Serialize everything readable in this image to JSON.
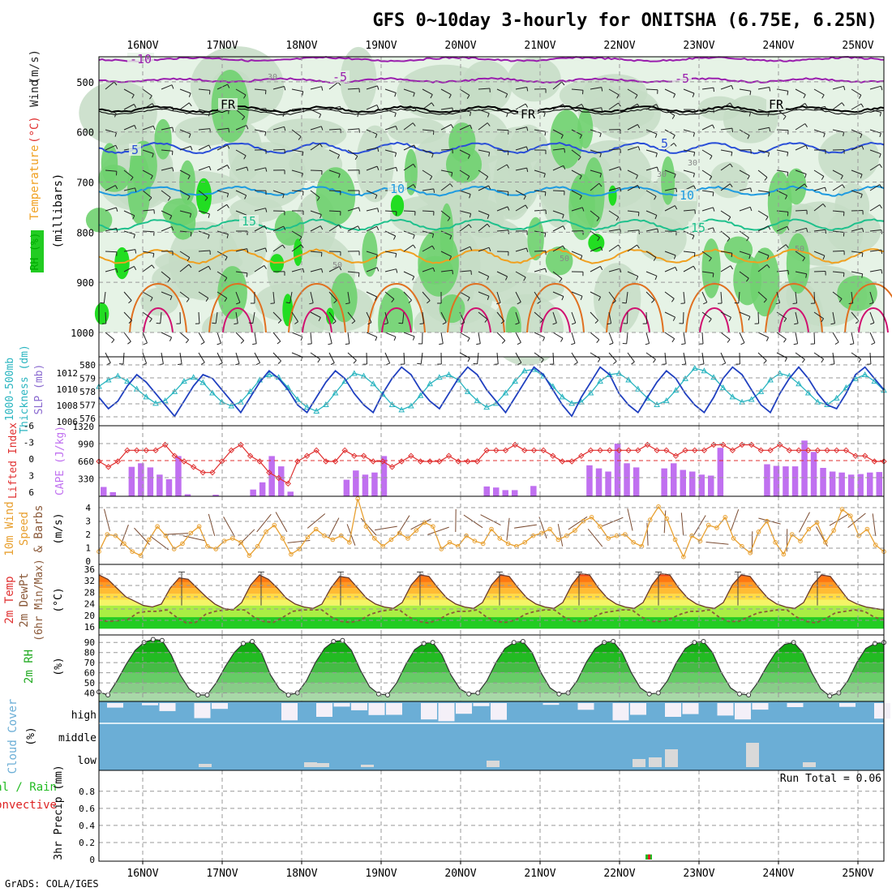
{
  "title": "GFS 0~10day 3-hourly for ONITSHA (6.75E, 6.25N)",
  "credit": "GrADS: COLA/IGES",
  "dates": [
    "16NOV",
    "17NOV",
    "18NOV",
    "19NOV",
    "20NOV",
    "21NOV",
    "22NOV",
    "23NOV",
    "24NOV",
    "25NOV"
  ],
  "colors": {
    "rh_light": "#e6f3e6",
    "rh_mid": "#c6dcc6",
    "rh_green": "#6fd26f",
    "rh_bright": "#22dd22",
    "t_purple": "#9a1fae",
    "t_blue": "#2a4fd8",
    "t_sky": "#1e9be0",
    "t_teal": "#1fc08c",
    "t_orange": "#f0a020",
    "t_dark_orange": "#e07020",
    "t_magenta": "#d01070",
    "thickness": "#2ab5c0",
    "slp": "#2040c0",
    "lifted_index": "#e03030",
    "cape": "#c070f0",
    "wind_speed": "#e8a030",
    "barbs": "#7a4a30",
    "dewpt": "#8b5a3a",
    "cloud": "#6baed6",
    "cloud_clear": "#f4f0f8",
    "cloud_low_grey": "#d9d9d9",
    "precip_total": "#22bb22",
    "precip_conv": "#dd2222"
  },
  "panels": {
    "upper_air": {
      "legend": [
        {
          "text": "RH (%)",
          "color": "#00aa00"
        },
        {
          "text": "Temperature",
          "color": "#e8a030"
        },
        {
          "text": "(°C)",
          "color": "#e03030"
        },
        {
          "text": "Wind",
          "color": "#222222"
        },
        {
          "text": "(m/s)",
          "color": "#222222"
        }
      ],
      "axis_label": "(millibars)",
      "pressure_ticks": [
        "500",
        "600",
        "700",
        "800",
        "900",
        "1000"
      ],
      "isotherm_labels": [
        "-10",
        "-5",
        "-5",
        "FR",
        "FR",
        "FR",
        "5",
        "5",
        "10",
        "10",
        "15",
        "15"
      ],
      "rh_contour_labels": [
        "30",
        "30",
        "30",
        "50",
        "50",
        "50"
      ]
    },
    "thickness_slp": {
      "label_thickness": "1000-500mb",
      "label_thickness2": "Thickness (dm)",
      "label_slp": "SLP (mb)",
      "left_ticks": [
        "580",
        "579",
        "578",
        "577",
        "576"
      ],
      "right_ticks": [
        "1012",
        "1010",
        "1008",
        "1006"
      ]
    },
    "li_cape": {
      "label_li": "Lifted Index",
      "label_cape": "CAPE (J/kg)",
      "li_ticks": [
        "-6",
        "-3",
        "0",
        "3",
        "6"
      ],
      "cape_ticks": [
        "1320",
        "990",
        "660",
        "330"
      ]
    },
    "wind10m": {
      "label1": "10m Wind",
      "label2": "Speed",
      "label3": "& Barbs",
      "unit": "(m/s)",
      "ticks": [
        "4",
        "3",
        "2",
        "1",
        "0"
      ]
    },
    "temp2m": {
      "label1": "2m Temp",
      "label2": "2m DewPt",
      "label3": "(6hr Min/Max)",
      "unit": "(°C)",
      "ticks": [
        "36",
        "32",
        "28",
        "24",
        "20",
        "16"
      ]
    },
    "rh2m": {
      "label": "2m RH",
      "unit": "(%)",
      "ticks": [
        "90",
        "80",
        "70",
        "60",
        "50",
        "40"
      ]
    },
    "cloud": {
      "label": "Cloud Cover",
      "unit": "(%)",
      "levels": [
        "high",
        "middle",
        "low"
      ]
    },
    "precip": {
      "label1": "Total / Rain",
      "label2": "Convective",
      "label3": "3hr Precip (mm)",
      "run_total": "Run Total = 0.06",
      "ticks": [
        "0.8",
        "0.6",
        "0.4",
        "0.2",
        "0"
      ]
    }
  },
  "chart_data": [
    {
      "type": "heatmap",
      "title": "GFS 0~10day 3-hourly for ONITSHA (6.75E, 6.25N)",
      "ylabel": "(millibars)",
      "ylim": [
        450,
        1000
      ],
      "x": [
        "16NOV",
        "17NOV",
        "18NOV",
        "19NOV",
        "20NOV",
        "21NOV",
        "22NOV",
        "23NOV",
        "24NOV",
        "25NOV"
      ],
      "isotherms_c": [
        -10,
        -5,
        0,
        5,
        10,
        15
      ],
      "isotherm_pressure_mb": {
        "-10": 455,
        "-5": 497,
        "0": 555,
        "5": 632,
        "10": 718,
        "15": 785
      }
    },
    {
      "type": "line",
      "series": [
        {
          "name": "1000-500mb Thickness (dm)",
          "values": [
            578.4,
            578.9,
            579.2,
            578.8,
            578.2,
            577.6,
            577.1,
            577.3,
            578.0,
            578.8,
            579.1,
            578.7,
            577.9,
            577.2,
            576.9,
            577.2,
            578.0,
            578.9,
            579.3,
            579.1,
            578.3,
            577.4,
            576.8,
            576.5,
            577.0,
            577.9,
            578.8,
            579.4,
            579.2,
            578.6,
            577.8,
            577.0,
            576.6,
            576.9,
            577.7,
            578.6,
            579.1,
            579.3,
            578.9,
            578.0,
            577.3,
            576.8,
            577.1,
            577.9,
            578.8,
            579.6,
            579.7,
            579.2,
            578.4,
            577.6,
            577.1,
            577.2,
            577.9,
            578.8,
            579.3,
            579.4,
            578.9,
            578.2,
            577.5,
            577.0,
            577.3,
            578.1,
            579.0,
            579.8,
            579.6,
            579.1,
            578.3,
            577.6,
            577.2,
            577.4,
            578.0,
            578.9,
            579.4,
            579.2,
            578.6,
            577.9,
            577.2,
            577.0,
            577.5,
            578.3,
            579.0,
            579.3,
            578.8,
            578.1
          ]
        },
        {
          "name": "SLP (mb)",
          "values": [
            1009.0,
            1007.5,
            1008.5,
            1010.5,
            1012.0,
            1011.0,
            1009.5,
            1008.0,
            1006.5,
            1008.5,
            1010.5,
            1012.0,
            1011.5,
            1010.0,
            1008.5,
            1007.0,
            1009.0,
            1011.0,
            1012.5,
            1011.5,
            1010.0,
            1008.0,
            1007.0,
            1009.0,
            1011.0,
            1012.5,
            1011.5,
            1009.5,
            1008.0,
            1007.0,
            1009.5,
            1011.5,
            1013.0,
            1012.0,
            1010.0,
            1008.5,
            1007.5,
            1009.5,
            1011.5,
            1013.0,
            1012.0,
            1010.0,
            1008.5,
            1007.0,
            1009.0,
            1011.0,
            1013.0,
            1012.0,
            1010.0,
            1008.0,
            1006.5,
            1009.0,
            1011.0,
            1013.0,
            1012.0,
            1009.5,
            1008.0,
            1007.0,
            1009.0,
            1011.0,
            1012.5,
            1011.5,
            1009.5,
            1008.0,
            1007.0,
            1009.0,
            1011.5,
            1013.0,
            1012.0,
            1010.0,
            1008.0,
            1007.0,
            1009.5,
            1011.5,
            1013.0,
            1011.5,
            1009.5,
            1008.0,
            1007.5,
            1009.5,
            1012.0,
            1013.0,
            1011.5,
            1010.0
          ]
        }
      ],
      "ylim": [
        1006,
        1013
      ]
    },
    {
      "type": "bar",
      "title": "Lifted Index / CAPE",
      "series": [
        {
          "name": "CAPE (J/kg)",
          "values": [
            180,
            80,
            0,
            570,
            640,
            560,
            420,
            330,
            780,
            40,
            0,
            0,
            30,
            0,
            0,
            0,
            130,
            270,
            780,
            580,
            90,
            0,
            0,
            0,
            0,
            0,
            320,
            500,
            420,
            460,
            780,
            0,
            0,
            0,
            0,
            0,
            0,
            0,
            0,
            0,
            0,
            190,
            170,
            120,
            120,
            0,
            200,
            0,
            0,
            0,
            0,
            0,
            600,
            540,
            480,
            1020,
            640,
            560,
            0,
            0,
            540,
            640,
            510,
            480,
            420,
            400,
            940,
            0,
            0,
            0,
            0,
            620,
            590,
            580,
            580,
            1080,
            860,
            550,
            480,
            460,
            420,
            430,
            460,
            470
          ]
        },
        {
          "name": "Lifted Index",
          "values": [
            0,
            1,
            0,
            -2,
            -2,
            -2,
            -2,
            -3,
            -1,
            0,
            1,
            2,
            2,
            0,
            -2,
            -3,
            -1,
            0,
            2,
            3,
            4,
            0,
            -1,
            -2,
            0,
            0,
            -2,
            -1,
            -1,
            0,
            0,
            1,
            0,
            -1,
            0,
            0,
            0,
            -1,
            0,
            0,
            0,
            -2,
            -2,
            -2,
            -3,
            -2,
            -2,
            -2,
            -1,
            0,
            0,
            -1,
            -2,
            -2,
            -2,
            -2,
            -2,
            -2,
            -3,
            -2,
            -2,
            -1,
            -2,
            -2,
            -2,
            -3,
            -3,
            -2,
            -3,
            -3,
            -2,
            -2,
            -3,
            -2,
            -2,
            -2,
            -2,
            -2,
            -2,
            -2,
            -1,
            -1,
            0,
            0
          ]
        }
      ],
      "ylim": [
        0,
        1320
      ]
    },
    {
      "type": "line",
      "series": [
        {
          "name": "10m Wind Speed (m/s)",
          "values": [
            0.6,
            1.9,
            1.8,
            1.2,
            0.6,
            0.3,
            1.5,
            2.5,
            1.8,
            0.8,
            1.2,
            2.0,
            2.5,
            1.0,
            0.8,
            1.4,
            1.6,
            1.3,
            0.3,
            1.0,
            2.1,
            2.6,
            1.6,
            0.4,
            0.8,
            1.7,
            2.3,
            1.8,
            1.5,
            1.8,
            1.3,
            4.6,
            2.5,
            1.6,
            1.0,
            1.5,
            2.0,
            1.6,
            2.2,
            2.8,
            2.5,
            0.8,
            1.3,
            1.0,
            1.8,
            1.4,
            1.2,
            2.3,
            1.6,
            1.2,
            1.0,
            1.3,
            1.8,
            2.0,
            2.3,
            1.5,
            1.8,
            2.2,
            2.9,
            3.2,
            2.5,
            1.6,
            1.8,
            1.9,
            1.3,
            1.0,
            3.0,
            4.0,
            3.1,
            1.5,
            0.2,
            1.8,
            1.4,
            2.6,
            2.4,
            3.2,
            1.6,
            1.0,
            0.5,
            2.1,
            2.9,
            1.3,
            0.4,
            1.9,
            1.4,
            2.3,
            2.8,
            1.3,
            2.2,
            3.8,
            3.3,
            1.8,
            2.3,
            1.1,
            0.6
          ]
        }
      ],
      "ylim": [
        0,
        4.6
      ]
    },
    {
      "type": "area",
      "series": [
        {
          "name": "2m Temp (°C)",
          "values": [
            34.5,
            33,
            30,
            27,
            25.5,
            24,
            23.5,
            24.5,
            30,
            33.5,
            33,
            30,
            27,
            24.5,
            23,
            22.5,
            25,
            31,
            34.5,
            33,
            30,
            26.5,
            24.5,
            23.5,
            23,
            24.5,
            30,
            34,
            33.5,
            30,
            26.5,
            24.5,
            23.5,
            23,
            25,
            31,
            34.5,
            34,
            30,
            26.5,
            24.5,
            23.5,
            23,
            25,
            31,
            34.5,
            34,
            30,
            26.5,
            24.5,
            23.5,
            23,
            25,
            31,
            35,
            34.5,
            30,
            26.5,
            24.5,
            23.5,
            23,
            25,
            31,
            35,
            34.5,
            30,
            26.5,
            24.5,
            23.5,
            23,
            25,
            31,
            34.5,
            34,
            30,
            26.5,
            24.5,
            23.5,
            23,
            25,
            31,
            34.5,
            34,
            30,
            26,
            24.5,
            23.5,
            23,
            22.5
          ]
        },
        {
          "name": "2m DewPt (°C)",
          "values": [
            19,
            18.5,
            18.8,
            19.2,
            21.5,
            22,
            22,
            22.5,
            20,
            18,
            18.2,
            21,
            22,
            22.5,
            22.5,
            22.5,
            20,
            18.5,
            18.2,
            20,
            22,
            22.5,
            22.5,
            22.5,
            20,
            18.5,
            18.2,
            19,
            21,
            22,
            22.5,
            22.5,
            20,
            18.5,
            18,
            19,
            21,
            22,
            22,
            22.5,
            20,
            18.5,
            18.2,
            19,
            21,
            22,
            22.5,
            22.5,
            20,
            18.5,
            18.5,
            20,
            21.5,
            22,
            22.5,
            22.5,
            20,
            18.5,
            18.5,
            19.5,
            21,
            22,
            22,
            22.5,
            20,
            18.5,
            18.5,
            20,
            21.5,
            22,
            22.5,
            22.5,
            20,
            18.5,
            18,
            19.5,
            21.5,
            22,
            22.5,
            22,
            20,
            19
          ]
        }
      ],
      "ylim": [
        16,
        36
      ]
    },
    {
      "type": "area",
      "series": [
        {
          "name": "2m RH (%)",
          "values": [
            41,
            38,
            52,
            68,
            82,
            90,
            93,
            92,
            78,
            58,
            44,
            38,
            38,
            50,
            66,
            80,
            89,
            91,
            80,
            58,
            44,
            38,
            40,
            52,
            70,
            84,
            91,
            92,
            82,
            62,
            46,
            39,
            38,
            50,
            68,
            83,
            89,
            90,
            78,
            58,
            44,
            39,
            40,
            52,
            70,
            84,
            90,
            91,
            80,
            60,
            45,
            39,
            40,
            52,
            70,
            84,
            90,
            91,
            80,
            60,
            45,
            39,
            40,
            52,
            70,
            84,
            90,
            91,
            80,
            60,
            45,
            39,
            38,
            50,
            66,
            80,
            88,
            90,
            80,
            60,
            44,
            37,
            40,
            52,
            70,
            84,
            89,
            90
          ]
        }
      ],
      "ylim": [
        35,
        95
      ]
    },
    {
      "type": "bar",
      "title": "3hr Precip (mm)",
      "x": [
        "22NOV"
      ],
      "series": [
        {
          "name": "Total / Rain",
          "values": [
            0.06
          ]
        },
        {
          "name": "Convective",
          "values": [
            0.06
          ]
        }
      ],
      "ylim": [
        0,
        0.95
      ]
    }
  ]
}
